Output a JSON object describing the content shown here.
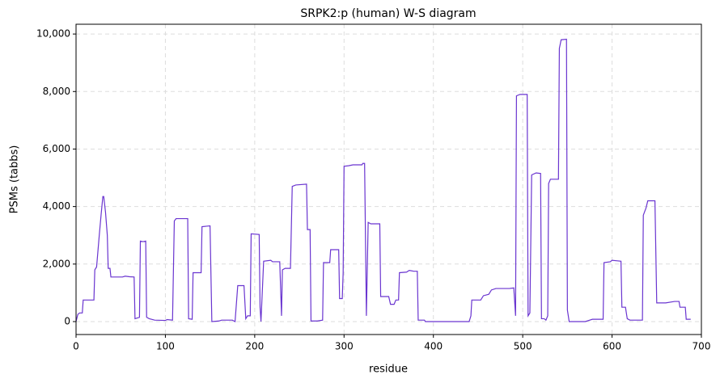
{
  "chart_data": {
    "type": "line",
    "title": "SRPK2:p (human) W-S diagram",
    "xlabel": "residue",
    "ylabel": "PSMs (tabbs)",
    "color": "#6a35d0",
    "grid": true,
    "xlim": [
      0,
      700
    ],
    "ylim": [
      -450,
      10340
    ],
    "xticks": [
      0,
      100,
      200,
      300,
      400,
      500,
      600,
      700
    ],
    "yticks": [
      0,
      {
        "value": 2000,
        "label": "2,000"
      },
      {
        "value": 4000,
        "label": "4,000"
      },
      {
        "value": 6000,
        "label": "6,000"
      },
      {
        "value": 8000,
        "label": "8,000"
      },
      {
        "value": 10000,
        "label": "10,000"
      }
    ],
    "x": [
      0,
      2,
      4,
      7,
      8,
      20,
      21,
      23,
      26,
      28,
      30,
      31,
      33,
      35,
      36,
      38,
      39,
      52,
      55,
      60,
      65,
      66,
      71,
      72,
      75,
      78,
      79,
      82,
      88,
      100,
      102,
      108,
      110,
      112,
      125,
      126,
      130,
      131,
      140,
      141,
      150,
      152,
      160,
      163,
      175,
      178,
      181,
      188,
      190,
      192,
      195,
      196,
      205,
      206,
      207,
      210,
      218,
      220,
      228,
      230,
      231,
      234,
      240,
      242,
      246,
      258,
      259,
      262,
      263,
      270,
      276,
      277,
      284,
      285,
      294,
      295,
      298,
      299,
      300,
      305,
      310,
      320,
      321,
      323,
      325,
      327,
      330,
      340,
      341,
      350,
      352,
      356,
      358,
      361,
      362,
      370,
      373,
      378,
      382,
      383,
      390,
      391,
      440,
      442,
      443,
      453,
      456,
      462,
      465,
      470,
      485,
      490,
      492,
      493,
      497,
      505,
      506,
      508,
      510,
      515,
      520,
      521,
      524,
      526,
      528,
      529,
      531,
      540,
      541,
      543,
      549,
      550,
      552,
      570,
      575,
      578,
      590,
      591,
      598,
      600,
      610,
      611,
      615,
      617,
      620,
      627,
      634,
      635,
      638,
      640,
      648,
      650,
      660,
      670,
      675,
      676,
      682,
      683,
      688
    ],
    "values": [
      0,
      250,
      300,
      300,
      750,
      750,
      1800,
      1900,
      3000,
      3700,
      4350,
      4350,
      3800,
      3000,
      1850,
      1850,
      1550,
      1550,
      1580,
      1560,
      1550,
      100,
      150,
      2800,
      2780,
      2800,
      150,
      100,
      50,
      40,
      70,
      50,
      3500,
      3580,
      3580,
      100,
      80,
      1700,
      1700,
      3300,
      3330,
      0,
      20,
      50,
      50,
      0,
      1250,
      1250,
      100,
      200,
      200,
      3050,
      3030,
      500,
      0,
      2100,
      2130,
      2080,
      2080,
      200,
      1800,
      1850,
      1850,
      4700,
      4750,
      4780,
      3200,
      3200,
      20,
      20,
      50,
      2050,
      2050,
      2500,
      2500,
      800,
      800,
      1700,
      5400,
      5420,
      5450,
      5450,
      5500,
      5500,
      200,
      3450,
      3400,
      3400,
      870,
      870,
      600,
      600,
      750,
      750,
      1700,
      1720,
      1780,
      1750,
      1750,
      50,
      50,
      0,
      0,
      200,
      750,
      750,
      900,
      950,
      1100,
      1150,
      1150,
      1170,
      200,
      7850,
      7900,
      7900,
      200,
      300,
      5100,
      5170,
      5150,
      100,
      100,
      50,
      200,
      4800,
      4950,
      4950,
      9500,
      9800,
      9820,
      400,
      0,
      0,
      50,
      80,
      80,
      2050,
      2080,
      2130,
      2100,
      500,
      500,
      100,
      50,
      50,
      50,
      3700,
      3950,
      4200,
      4200,
      650,
      650,
      700,
      700,
      500,
      500,
      80,
      80
    ]
  }
}
